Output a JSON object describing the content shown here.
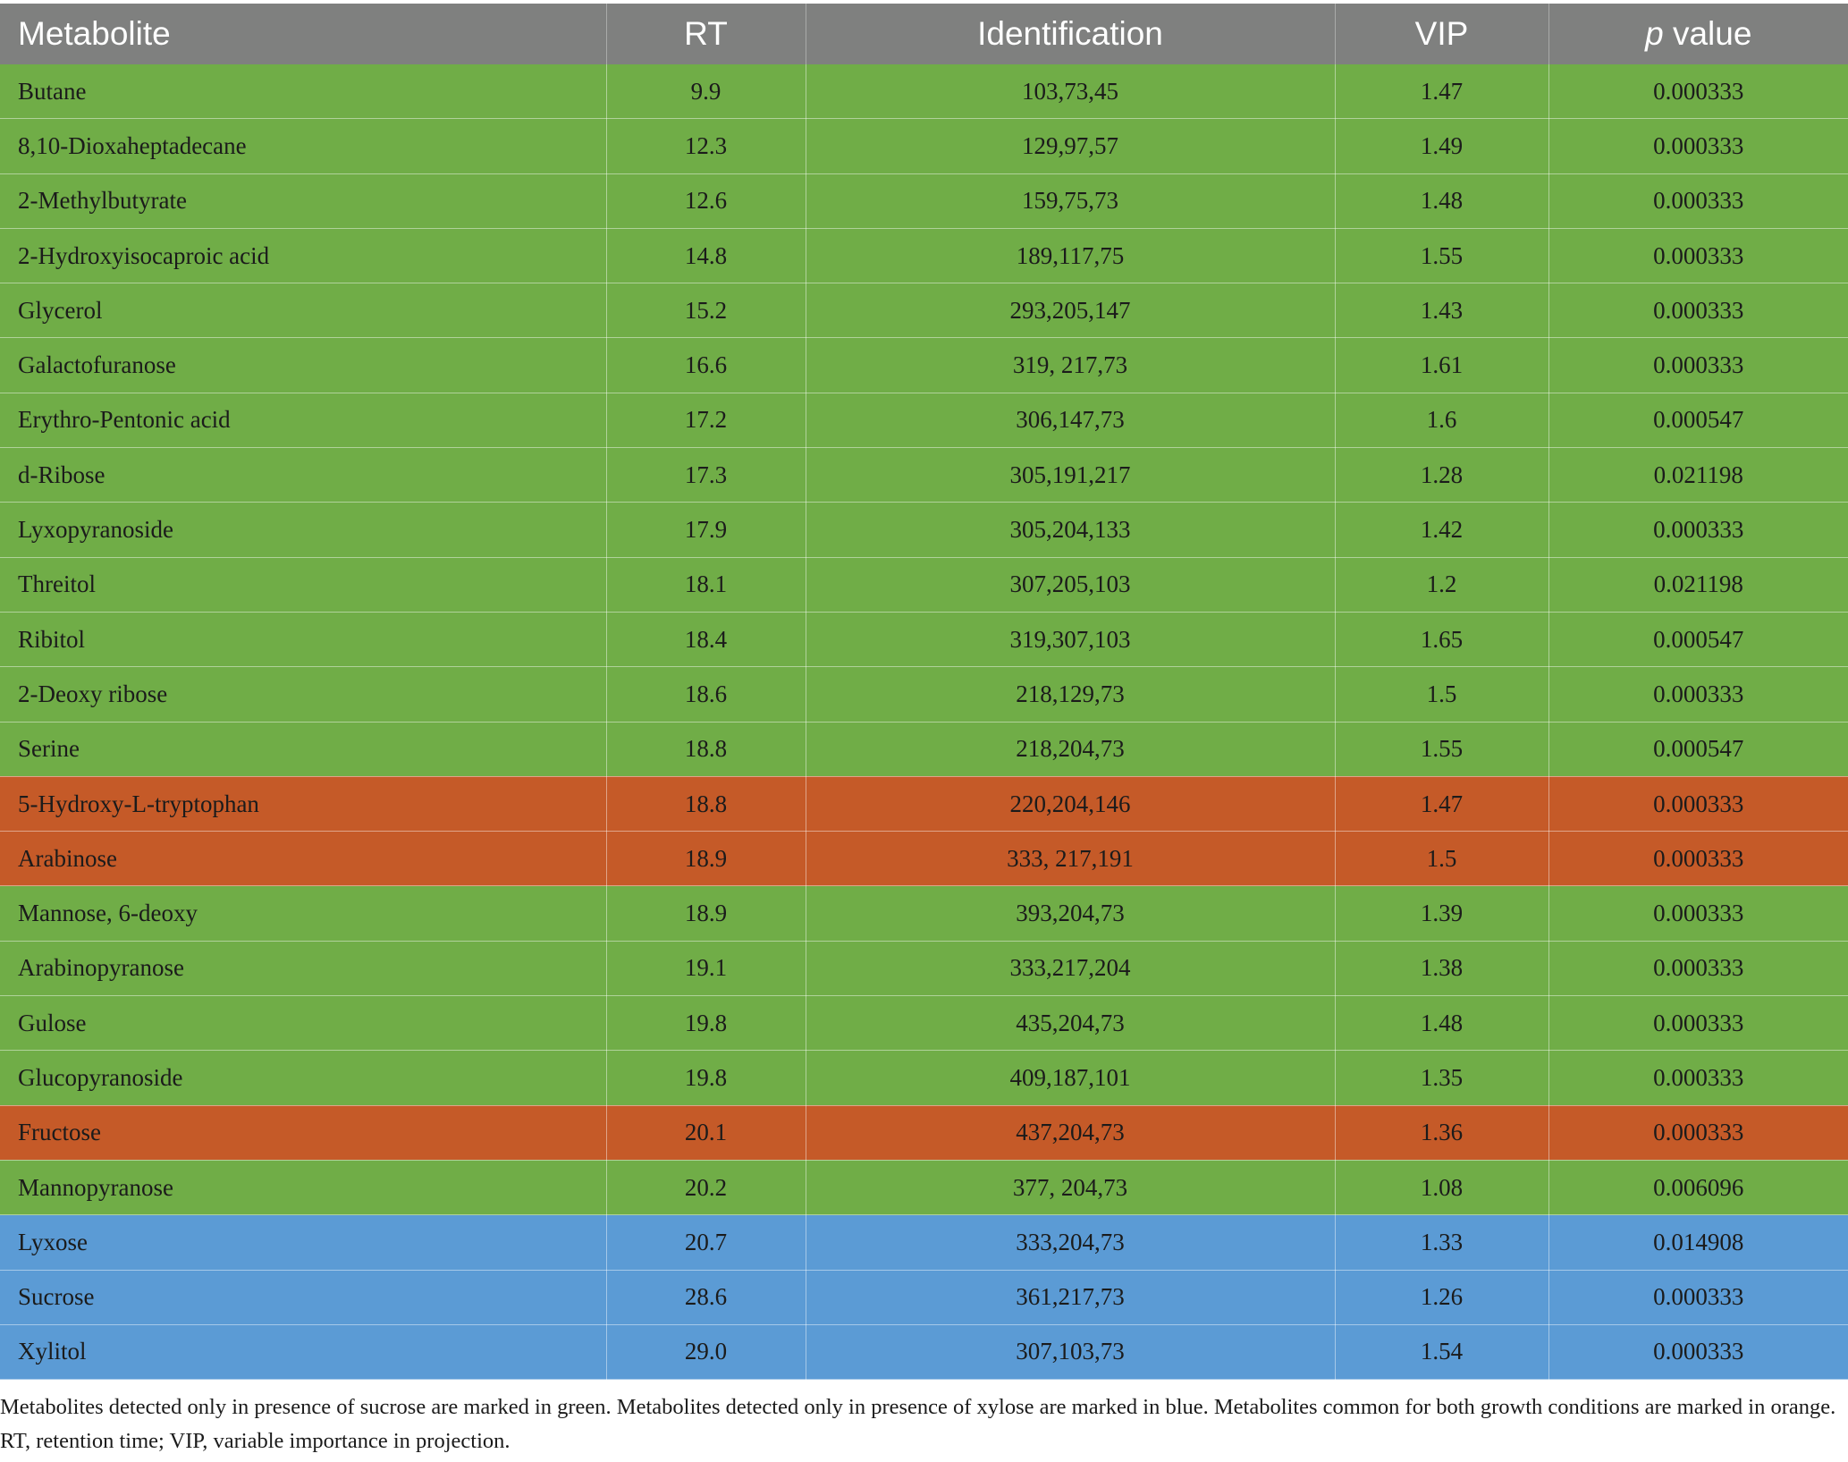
{
  "table": {
    "headers": {
      "metabolite": "Metabolite",
      "rt": "RT",
      "identification": "Identification",
      "vip": "VIP",
      "p_italic": "p",
      "p_rest": " value"
    },
    "group_colors": {
      "sucrose": "#70ad47",
      "common": "#c55a28",
      "xylose": "#5b9bd5"
    },
    "rows": [
      {
        "metabolite": "Butane",
        "rt": "9.9",
        "identification": "103,73,45",
        "vip": "1.47",
        "p": "0.000333",
        "group": "sucrose"
      },
      {
        "metabolite": "8,10-Dioxaheptadecane",
        "rt": "12.3",
        "identification": "129,97,57",
        "vip": "1.49",
        "p": "0.000333",
        "group": "sucrose"
      },
      {
        "metabolite": "2-Methylbutyrate",
        "rt": "12.6",
        "identification": "159,75,73",
        "vip": "1.48",
        "p": "0.000333",
        "group": "sucrose"
      },
      {
        "metabolite": "2-Hydroxyisocaproic acid",
        "rt": "14.8",
        "identification": "189,117,75",
        "vip": "1.55",
        "p": "0.000333",
        "group": "sucrose"
      },
      {
        "metabolite": "Glycerol",
        "rt": "15.2",
        "identification": "293,205,147",
        "vip": "1.43",
        "p": "0.000333",
        "group": "sucrose"
      },
      {
        "metabolite": "Galactofuranose",
        "rt": "16.6",
        "identification": "319, 217,73",
        "vip": "1.61",
        "p": "0.000333",
        "group": "sucrose"
      },
      {
        "metabolite": "Erythro-Pentonic acid",
        "rt": "17.2",
        "identification": "306,147,73",
        "vip": "1.6",
        "p": "0.000547",
        "group": "sucrose"
      },
      {
        "metabolite": "d-Ribose",
        "rt": "17.3",
        "identification": "305,191,217",
        "vip": "1.28",
        "p": "0.021198",
        "group": "sucrose"
      },
      {
        "metabolite": "Lyxopyranoside",
        "rt": "17.9",
        "identification": "305,204,133",
        "vip": "1.42",
        "p": "0.000333",
        "group": "sucrose"
      },
      {
        "metabolite": "Threitol",
        "rt": "18.1",
        "identification": "307,205,103",
        "vip": "1.2",
        "p": "0.021198",
        "group": "sucrose"
      },
      {
        "metabolite": "Ribitol",
        "rt": "18.4",
        "identification": "319,307,103",
        "vip": "1.65",
        "p": "0.000547",
        "group": "sucrose"
      },
      {
        "metabolite": "2-Deoxy ribose",
        "rt": "18.6",
        "identification": "218,129,73",
        "vip": "1.5",
        "p": "0.000333",
        "group": "sucrose"
      },
      {
        "metabolite": "Serine",
        "rt": "18.8",
        "identification": "218,204,73",
        "vip": "1.55",
        "p": "0.000547",
        "group": "sucrose"
      },
      {
        "metabolite": "5-Hydroxy-L-tryptophan",
        "rt": "18.8",
        "identification": "220,204,146",
        "vip": "1.47",
        "p": "0.000333",
        "group": "common"
      },
      {
        "metabolite": "Arabinose",
        "rt": "18.9",
        "identification": "333, 217,191",
        "vip": "1.5",
        "p": "0.000333",
        "group": "common"
      },
      {
        "metabolite": "Mannose, 6-deoxy",
        "rt": "18.9",
        "identification": "393,204,73",
        "vip": "1.39",
        "p": "0.000333",
        "group": "sucrose"
      },
      {
        "metabolite": "Arabinopyranose",
        "rt": "19.1",
        "identification": "333,217,204",
        "vip": "1.38",
        "p": "0.000333",
        "group": "sucrose"
      },
      {
        "metabolite": "Gulose",
        "rt": "19.8",
        "identification": "435,204,73",
        "vip": "1.48",
        "p": "0.000333",
        "group": "sucrose"
      },
      {
        "metabolite": "Glucopyranoside",
        "rt": "19.8",
        "identification": "409,187,101",
        "vip": "1.35",
        "p": "0.000333",
        "group": "sucrose"
      },
      {
        "metabolite": "Fructose",
        "rt": "20.1",
        "identification": "437,204,73",
        "vip": "1.36",
        "p": "0.000333",
        "group": "common"
      },
      {
        "metabolite": "Mannopyranose",
        "rt": "20.2",
        "identification": "377, 204,73",
        "vip": "1.08",
        "p": "0.006096",
        "group": "sucrose"
      },
      {
        "metabolite": "Lyxose",
        "rt": "20.7",
        "identification": "333,204,73",
        "vip": "1.33",
        "p": "0.014908",
        "group": "xylose"
      },
      {
        "metabolite": "Sucrose",
        "rt": "28.6",
        "identification": "361,217,73",
        "vip": "1.26",
        "p": "0.000333",
        "group": "xylose"
      },
      {
        "metabolite": "Xylitol",
        "rt": "29.0",
        "identification": "307,103,73",
        "vip": "1.54",
        "p": "0.000333",
        "group": "xylose"
      }
    ]
  },
  "footnote": "Metabolites detected only in presence of sucrose are marked in green. Metabolites detected only in presence of xylose are marked in blue. Metabolites common for both growth conditions are marked in orange. RT, retention time; VIP, variable importance in projection."
}
